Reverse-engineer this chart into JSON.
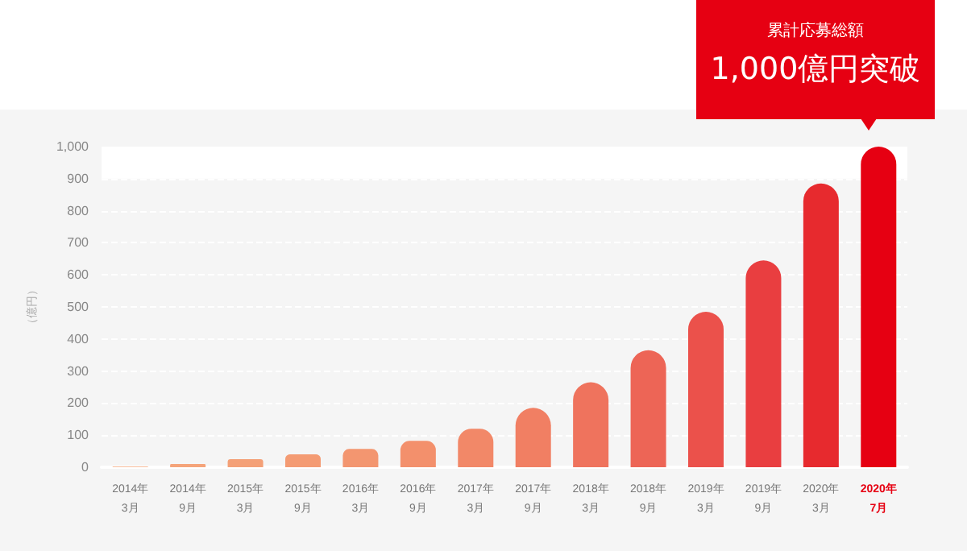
{
  "chart_data": {
    "type": "bar",
    "ylabel": "（億円）",
    "categories": [
      "2014年\n3月",
      "2014年\n9月",
      "2015年\n3月",
      "2015年\n9月",
      "2016年\n3月",
      "2016年\n9月",
      "2017年\n3月",
      "2017年\n9月",
      "2018年\n3月",
      "2018年\n9月",
      "2019年\n3月",
      "2019年\n9月",
      "2020年\n3月",
      "2020年\n7月"
    ],
    "values": [
      2,
      10,
      25,
      40,
      57,
      82,
      120,
      185,
      265,
      365,
      485,
      645,
      885,
      1000
    ],
    "colors": [
      "#f5a77c",
      "#f5a47a",
      "#f4a077",
      "#f49b73",
      "#f39670",
      "#f3906c",
      "#f28868",
      "#f17f63",
      "#ef735d",
      "#ed6556",
      "#eb514b",
      "#e93e40",
      "#e72a2e",
      "#e60012"
    ],
    "ylim": [
      0,
      1000
    ],
    "yticks": [
      0,
      100,
      200,
      300,
      400,
      500,
      600,
      700,
      800,
      900,
      {
        "value": 1000,
        "label": "1,000"
      }
    ],
    "grid": "y",
    "bands": [
      {
        "axis": "y",
        "from": 900,
        "to": 1000,
        "color": "#ffffff"
      }
    ],
    "annotations": [
      "累計応募総額",
      "1,000億円突破"
    ]
  }
}
